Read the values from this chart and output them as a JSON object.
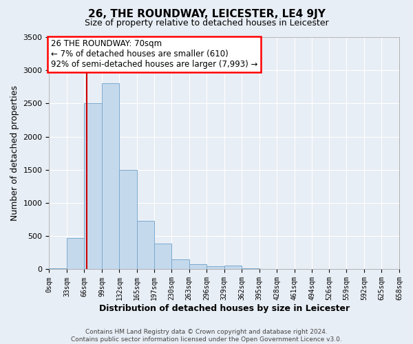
{
  "title": "26, THE ROUNDWAY, LEICESTER, LE4 9JY",
  "subtitle": "Size of property relative to detached houses in Leicester",
  "xlabel": "Distribution of detached houses by size in Leicester",
  "ylabel": "Number of detached properties",
  "bar_color": "#c5d9ed",
  "bar_edge_color": "#7aaace",
  "background_color": "#e8eef5",
  "plot_bg_color": "#e8eef5",
  "grid_color": "#ffffff",
  "vline_x": 70,
  "vline_color": "#cc0000",
  "bin_edges": [
    0,
    33,
    66,
    99,
    132,
    165,
    197,
    230,
    263,
    296,
    329,
    362,
    395,
    428,
    461,
    494,
    526,
    559,
    592,
    625,
    658
  ],
  "bar_heights": [
    20,
    475,
    2500,
    2800,
    1500,
    730,
    390,
    155,
    75,
    50,
    55,
    20,
    0,
    0,
    0,
    0,
    0,
    0,
    0,
    0
  ],
  "ylim": [
    0,
    3500
  ],
  "yticks": [
    0,
    500,
    1000,
    1500,
    2000,
    2500,
    3000,
    3500
  ],
  "xtick_labels": [
    "0sqm",
    "33sqm",
    "66sqm",
    "99sqm",
    "132sqm",
    "165sqm",
    "197sqm",
    "230sqm",
    "263sqm",
    "296sqm",
    "329sqm",
    "362sqm",
    "395sqm",
    "428sqm",
    "461sqm",
    "494sqm",
    "526sqm",
    "559sqm",
    "592sqm",
    "625sqm",
    "658sqm"
  ],
  "annotation_title": "26 THE ROUNDWAY: 70sqm",
  "annotation_line1": "← 7% of detached houses are smaller (610)",
  "annotation_line2": "92% of semi-detached houses are larger (7,993) →",
  "footer1": "Contains HM Land Registry data © Crown copyright and database right 2024.",
  "footer2": "Contains public sector information licensed under the Open Government Licence v3.0."
}
